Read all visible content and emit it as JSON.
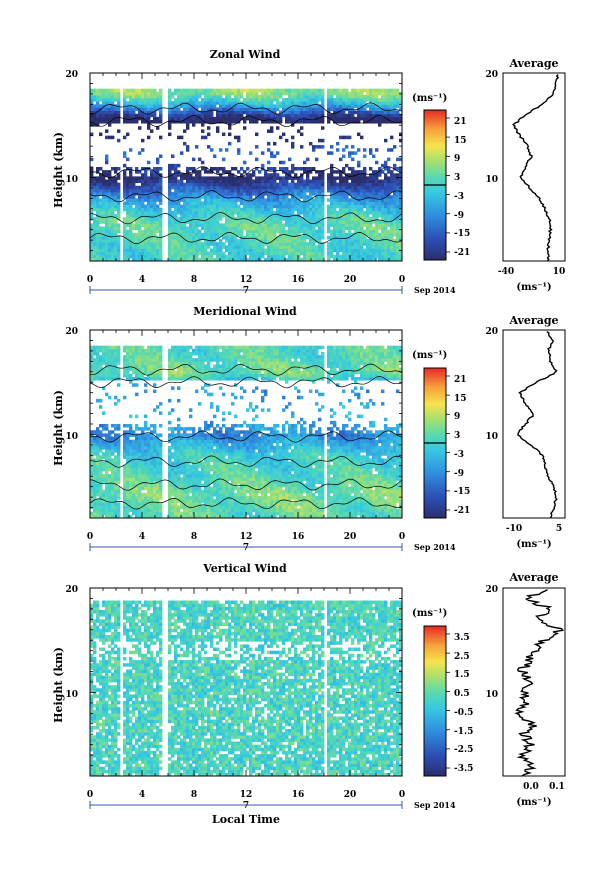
{
  "units_label": "(ms⁻¹)",
  "date_label": "Sep 2014",
  "day_label": "7",
  "xlabel_bottom": "Local Time",
  "x_ticks": [
    "0",
    "4",
    "8",
    "12",
    "16",
    "20",
    "0"
  ],
  "y_ticks": [
    "10",
    "20"
  ],
  "chart_data": [
    {
      "type": "heatmap",
      "title": "Zonal Wind",
      "ylabel": "Height (km)",
      "xlabel": "Local Time",
      "xlim": [
        0,
        24
      ],
      "ylim": [
        2,
        20
      ],
      "colorbar": {
        "unit": "(ms⁻¹)",
        "ticks": [
          "21",
          "15",
          "9",
          "3",
          "-3",
          "-9",
          "-15",
          "-21"
        ],
        "range": [
          -24,
          24
        ],
        "zero_line": true
      },
      "profile": {
        "title": "Average",
        "xlabel": "(ms⁻¹)",
        "xticks": [
          "-40",
          "10"
        ],
        "xlim": [
          -40,
          15
        ],
        "heights": [
          2,
          3,
          4,
          5,
          6,
          7,
          8,
          9,
          10,
          11,
          12,
          13,
          14,
          15,
          16,
          17,
          18,
          19,
          20
        ],
        "values": [
          0,
          0,
          1,
          2,
          1,
          -3,
          -8,
          -16,
          -24,
          -20,
          -15,
          -18,
          -25,
          -31,
          -20,
          -5,
          5,
          7,
          9
        ]
      }
    },
    {
      "type": "heatmap",
      "title": "Meridional Wind",
      "ylabel": "Height (km)",
      "xlabel": "Local Time",
      "xlim": [
        0,
        24
      ],
      "ylim": [
        2,
        20
      ],
      "colorbar": {
        "unit": "(ms⁻¹)",
        "ticks": [
          "21",
          "15",
          "9",
          "3",
          "-3",
          "-9",
          "-15",
          "-21"
        ],
        "range": [
          -24,
          24
        ],
        "zero_line": true
      },
      "profile": {
        "title": "Average",
        "xlabel": "(ms⁻¹)",
        "xticks": [
          "-10",
          "5"
        ],
        "xlim": [
          -15,
          7
        ],
        "heights": [
          2,
          3,
          4,
          5,
          6,
          7,
          8,
          9,
          10,
          11,
          12,
          13,
          14,
          15,
          16,
          17,
          18,
          19,
          20
        ],
        "values": [
          2,
          3,
          4,
          3,
          1,
          0,
          -1,
          -5,
          -10,
          -7,
          -4,
          -7,
          -9,
          -3,
          4,
          2,
          1,
          3,
          0
        ]
      }
    },
    {
      "type": "heatmap",
      "title": "Vertical Wind",
      "ylabel": "Height (km)",
      "xlabel": "Local Time",
      "xlim": [
        0,
        24
      ],
      "ylim": [
        2,
        20
      ],
      "colorbar": {
        "unit": "(ms⁻¹)",
        "ticks": [
          "3.5",
          "2.5",
          "1.5",
          "0.5",
          "-0.5",
          "-1.5",
          "-2.5",
          "-3.5"
        ],
        "range": [
          -4,
          4
        ],
        "zero_line": false
      },
      "profile": {
        "title": "Average",
        "xlabel": "(ms⁻¹)",
        "xticks": [
          "0.0",
          "0.1"
        ],
        "xlim": [
          -0.05,
          0.15
        ],
        "heights": [
          2,
          3,
          4,
          5,
          6,
          7,
          8,
          9,
          10,
          11,
          12,
          13,
          14,
          15,
          16,
          17,
          18,
          19,
          20
        ],
        "values": [
          0.02,
          0.05,
          0.01,
          0.04,
          0.02,
          0.05,
          0.0,
          0.03,
          0.02,
          0.04,
          0.01,
          0.03,
          0.05,
          0.08,
          0.13,
          0.06,
          0.1,
          0.02,
          0.1
        ]
      }
    }
  ]
}
